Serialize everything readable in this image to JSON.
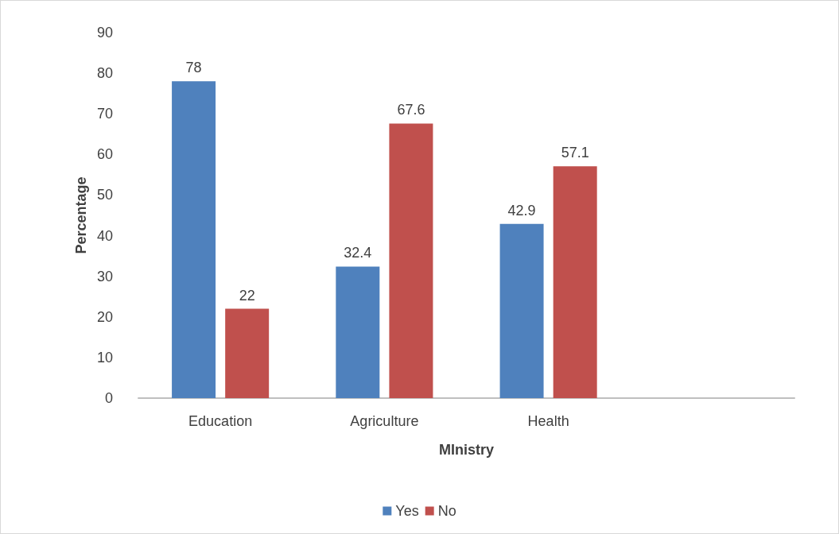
{
  "chart_data": {
    "type": "bar",
    "xlabel": "MInistry",
    "ylabel": "Percentage",
    "categories": [
      "Education",
      "Agriculture",
      "Health",
      null
    ],
    "series": [
      {
        "name": "Yes",
        "color": "#4f81bd",
        "values": [
          78,
          32.4,
          42.9,
          null
        ]
      },
      {
        "name": "No",
        "color": "#c0504d",
        "values": [
          22,
          67.6,
          57.1,
          null
        ]
      }
    ],
    "ylim": [
      0,
      90
    ],
    "yticks": [
      0,
      10,
      20,
      30,
      40,
      50,
      60,
      70,
      80,
      90
    ],
    "grid": false,
    "legend": "bottom",
    "data_labels": true
  }
}
